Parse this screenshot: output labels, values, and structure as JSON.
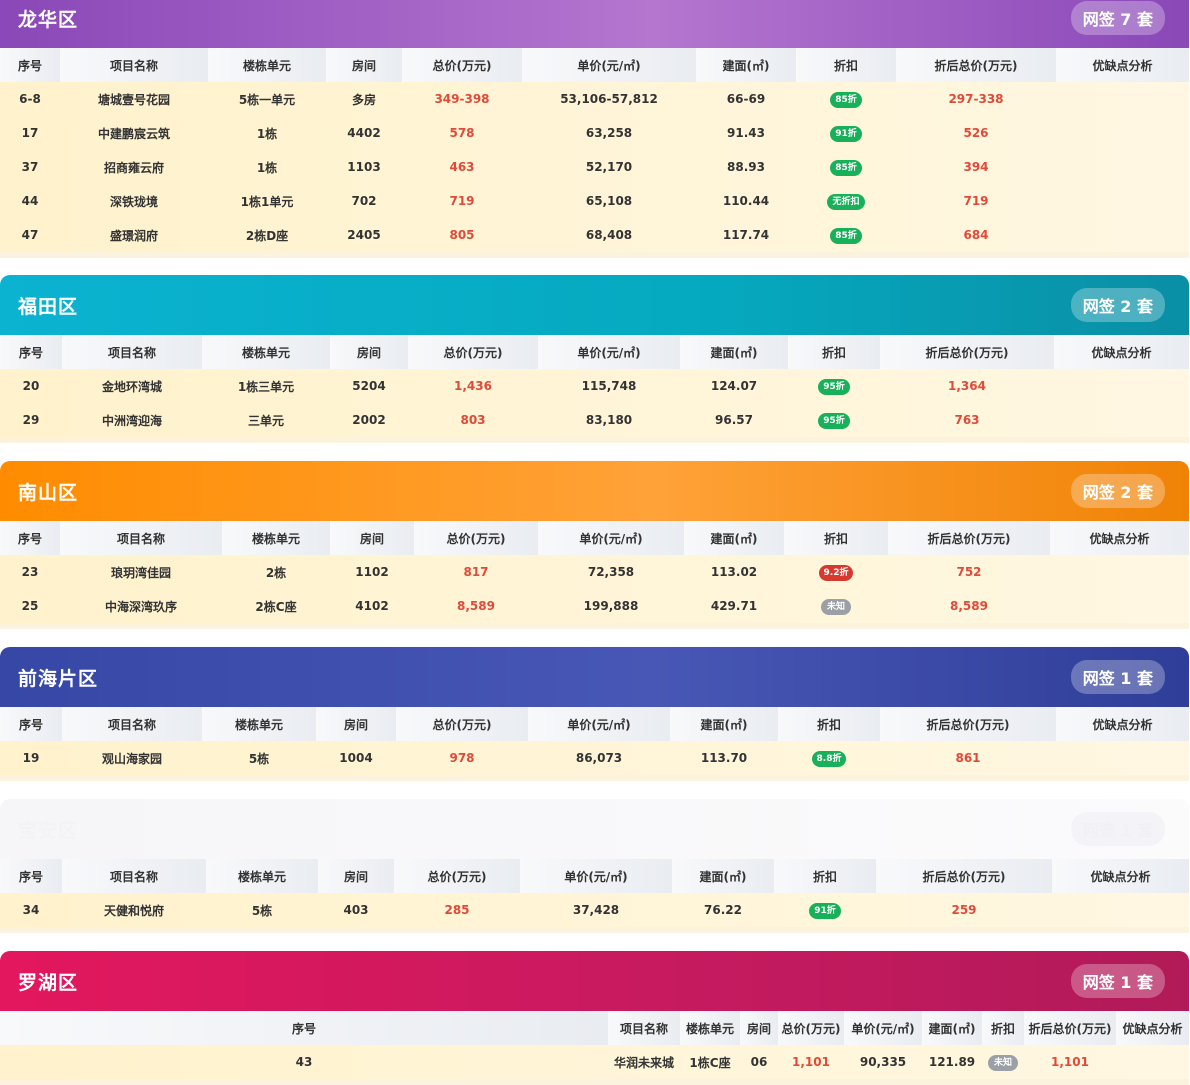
{
  "headers": [
    "序号",
    "项目名称",
    "楼栋单元",
    "房间",
    "总价(万元)",
    "单价(元/㎡)",
    "建面(㎡)",
    "折扣",
    "折后总价(万元)",
    "优缺点分析"
  ],
  "sections": [
    {
      "district": "龙华区",
      "badge": "网签 7 套",
      "rows": [
        {
          "no": "6-8",
          "name": "塘城壹号花园",
          "unit": "5栋一单元",
          "room": "多房",
          "total": "349-398",
          "price": "53,106-57,812",
          "area": "66-69",
          "discount": "85折",
          "discount_color": "green",
          "after": "297-338",
          "analysis": ""
        },
        {
          "no": "17",
          "name": "中建鹏宸云筑",
          "unit": "1栋",
          "room": "4402",
          "total": "578",
          "price": "63,258",
          "area": "91.43",
          "discount": "91折",
          "discount_color": "green",
          "after": "526",
          "analysis": ""
        },
        {
          "no": "37",
          "name": "招商雍云府",
          "unit": "1栋",
          "room": "1103",
          "total": "463",
          "price": "52,170",
          "area": "88.93",
          "discount": "85折",
          "discount_color": "green",
          "after": "394",
          "analysis": ""
        },
        {
          "no": "44",
          "name": "深铁珑境",
          "unit": "1栋1单元",
          "room": "702",
          "total": "719",
          "price": "65,108",
          "area": "110.44",
          "discount": "无折扣",
          "discount_color": "green",
          "after": "719",
          "analysis": ""
        },
        {
          "no": "47",
          "name": "盛璟润府",
          "unit": "2栋D座",
          "room": "2405",
          "total": "805",
          "price": "68,408",
          "area": "117.74",
          "discount": "85折",
          "discount_color": "green",
          "after": "684",
          "analysis": ""
        }
      ]
    },
    {
      "district": "福田区",
      "badge": "网签 2 套",
      "rows": [
        {
          "no": "20",
          "name": "金地环湾城",
          "unit": "1栋三单元",
          "room": "5204",
          "total": "1,436",
          "price": "115,748",
          "area": "124.07",
          "discount": "95折",
          "discount_color": "green",
          "after": "1,364",
          "analysis": ""
        },
        {
          "no": "29",
          "name": "中洲湾迎海",
          "unit": "三单元",
          "room": "2002",
          "total": "803",
          "price": "83,180",
          "area": "96.57",
          "discount": "95折",
          "discount_color": "green",
          "after": "763",
          "analysis": ""
        }
      ]
    },
    {
      "district": "南山区",
      "badge": "网签 2 套",
      "rows": [
        {
          "no": "23",
          "name": "琅玥湾佳园",
          "unit": "2栋",
          "room": "1102",
          "total": "817",
          "price": "72,358",
          "area": "113.02",
          "discount": "9.2折",
          "discount_color": "red",
          "after": "752",
          "analysis": ""
        },
        {
          "no": "25",
          "name": "中海深湾玖序",
          "unit": "2栋C座",
          "room": "4102",
          "total": "8,589",
          "price": "199,888",
          "area": "429.71",
          "discount": "未知",
          "discount_color": "gray",
          "after": "8,589",
          "analysis": ""
        }
      ]
    },
    {
      "district": "前海片区",
      "badge": "网签 1 套",
      "rows": [
        {
          "no": "19",
          "name": "观山海家园",
          "unit": "5栋",
          "room": "1004",
          "total": "978",
          "price": "86,073",
          "area": "113.70",
          "discount": "8.8折",
          "discount_color": "green",
          "after": "861",
          "analysis": ""
        }
      ]
    },
    {
      "district": "宝安区",
      "badge": "网签 1 套",
      "rows": [
        {
          "no": "34",
          "name": "天健和悦府",
          "unit": "5栋",
          "room": "403",
          "total": "285",
          "price": "37,428",
          "area": "76.22",
          "discount": "91折",
          "discount_color": "green",
          "after": "259",
          "analysis": ""
        }
      ]
    },
    {
      "district": "罗湖区",
      "badge": "网签 1 套",
      "rows": [
        {
          "no": "43",
          "name": "华润未来城",
          "unit": "1栋C座",
          "room": "06",
          "total": "1,101",
          "price": "90,335",
          "area": "121.89",
          "discount": "未知",
          "discount_color": "gray",
          "after": "1,101",
          "analysis": ""
        }
      ]
    }
  ]
}
